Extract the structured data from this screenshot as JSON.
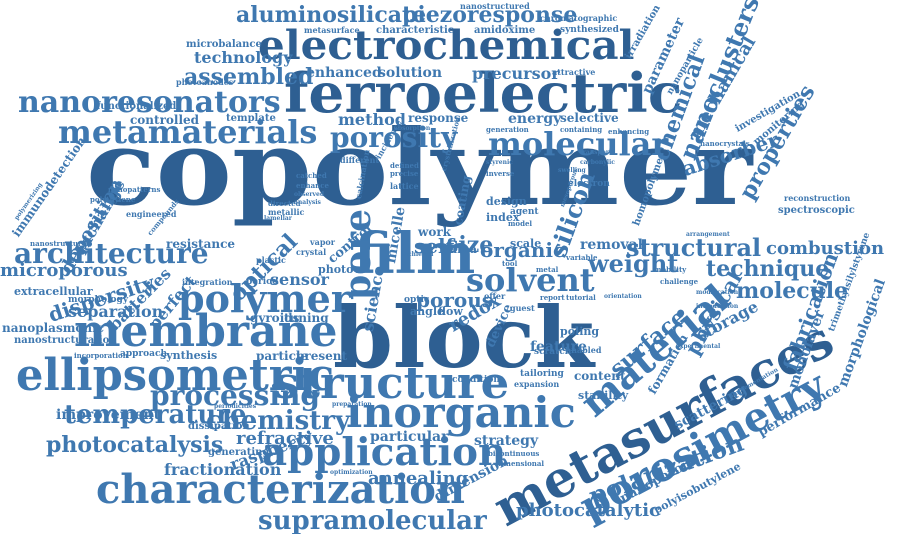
{
  "words": {
    "copolymer": "copolymer",
    "block": "block",
    "ferroelectric": "ferroelectric",
    "electrochemical": "electrochemical",
    "metasurfaces": "metasurfaces",
    "structure": "structure",
    "inorganic": "inorganic",
    "application": "application",
    "characterization": "characterization",
    "membrane": "membrane",
    "ellipsometric": "ellipsometric",
    "metamaterials": "metamaterials",
    "nanoresonators": "nanoresonators",
    "polymer": "polymer",
    "film": "film",
    "porosimetry": "porosimetry",
    "material": "material",
    "supramolecular": "supramolecular",
    "molecular": "molecular",
    "porosity": "porosity",
    "pore": "pore",
    "solvent": "solvent",
    "architecture": "architecture",
    "processing": "processing",
    "chemistry": "chemistry",
    "temperature": "temperature",
    "photocatalysis": "photocatalysis",
    "polarization": "polarization",
    "aluminosilicate": "aluminosilicate",
    "piezoresponse": "piezoresponse",
    "assembled": "assembled",
    "technology": "technology",
    "nanoclusters": "nanoclusters",
    "mechanical": "mechanical",
    "chemical": "chemical",
    "absorber": "absorber",
    "properties": "properties",
    "structural": "structural",
    "technique": "technique",
    "molecule": "molecule",
    "fabrication": "fabrication",
    "surface": "surface",
    "physical": "physical",
    "combustion": "combustion",
    "silicon": "silicon",
    "organic": "organic",
    "weight": "weight",
    "size": "size",
    "self": "self",
    "optical": "optical",
    "dispersity": "dispersity",
    "microporous": "microporous",
    "separation": "separation",
    "refractive": "refractive",
    "fractionation": "fractionation",
    "annealing": "annealing",
    "photocatalytic": "photocatalytic",
    "improvement": "improvement",
    "raspberry": "raspberry",
    "dimension": "dimension",
    "sensor": "sensor",
    "porous": "porous",
    "redox": "redox",
    "particular": "particular",
    "strategy": "strategy",
    "storage": "storage",
    "scattering": "scattering",
    "performance": "performance",
    "monolayer": "monolayer",
    "morphological": "morphological",
    "method": "method",
    "solution": "solution",
    "precursor": "precursor",
    "enhanced": "enhanced",
    "nanoporous": "nanoporous",
    "polyisobutylene": "polyisobutylene",
    "deposition": "deposition",
    "exchange": "exchange",
    "immunodetection": "immunodetection",
    "extracellular": "extracellular",
    "nanoplasmonic": "nanoplasmonic",
    "nanostructuration": "nanostructuration",
    "perfect": "perfect",
    "batteries": "batteries",
    "controlled": "controlled",
    "template": "template",
    "functionalized": "functionalized",
    "photoanodes": "photoanodes",
    "microbalance": "microbalance",
    "metasurface": "metasurface",
    "characteristic": "characteristic",
    "amidoxime": "amidoxime",
    "nanostructured": "nanostructured",
    "chromatographic": "chromatographic",
    "synthesized": "synthesized",
    "irradiation": "irradiation",
    "parameter": "parameter",
    "attractive": "attractive",
    "nanoparticle": "nanoparticle",
    "investigation": "investigation",
    "monitoring": "monitoring",
    "spectroscopic": "spectroscopic",
    "reconstruction": "reconstruction",
    "trimethylsilylstyrene": "trimethylsilylstyrene",
    "energy": "energy",
    "selective": "selective",
    "response": "response",
    "removal": "removal",
    "resistance": "resistance",
    "science": "science",
    "micelle": "micelle",
    "feature": "feature",
    "formation": "formation",
    "content": "content",
    "stability": "stability",
    "poling": "poling",
    "tuning": "tuning",
    "gyroids": "gyroids",
    "particle": "particle",
    "present": "present",
    "synthesis": "synthesis",
    "approach": "approach",
    "dissipation": "dissipation",
    "generating": "generating",
    "photo": "photo",
    "control": "control",
    "coating": "coating",
    "work": "work",
    "area": "area",
    "index": "index",
    "design": "design",
    "scale": "scale",
    "morphology": "morphology",
    "electron": "electron",
    "homopolymer": "homopolymer",
    "metallic": "metallic",
    "engineered": "engineered",
    "nanostructures": "nanostructures",
    "polythylene": "polythylene",
    "nanopatterns": "nanopatterns",
    "incidence": "incidence",
    "different": "different",
    "nanocrystals": "nanocrystals",
    "enhancing": "enhancing",
    "absorption": "absorption",
    "generation": "generation",
    "containing": "containing",
    "angle": "angle",
    "flow": "flow",
    "agent": "agent",
    "device": "device",
    "condition": "condition",
    "tailoring": "tailoring",
    "expansion": "expansion",
    "scratch": "scratch",
    "enabled": "enabled",
    "period": "period",
    "integration": "integration",
    "plastic": "plastic",
    "crystal": "crystal",
    "vapor": "vapor",
    "optic": "optic",
    "bicontinuous": "bicontinuous",
    "dimensional": "dimensional",
    "optimization": "optimization",
    "preparation": "preparation",
    "periodicities": "periodicities",
    "incorporation": "incorporation",
    "mobility": "mobility",
    "challenge": "challenge",
    "modification": "modification",
    "introduction": "introduction",
    "experimental": "experimental",
    "implementation": "implementation",
    "arrangement": "arrangement",
    "report": "report",
    "tutorial": "tutorial",
    "orientation": "orientation",
    "guest": "guest",
    "offer": "offer",
    "catched": "catched",
    "enhance": "enhance",
    "analysis": "analysis",
    "observed": "observed",
    "polymerizing": "polymerizing",
    "compounds": "compounds",
    "directed": "directed",
    "lamellar": "lamellar",
    "defined": "defined",
    "precise": "precise",
    "lattice": "lattice",
    "styrenic": "styrenic",
    "inverse": "inverse",
    "swelling": "swelling",
    "transport": "transport",
    "carbonylic": "carbonylic",
    "metal": "metal",
    "variable": "variable",
    "model": "model",
    "calcination": "calcination",
    "crystallization": "crystallization",
    "achieved": "achieved",
    "tool": "tool",
    "mesoporous": "mesoporous"
  }
}
